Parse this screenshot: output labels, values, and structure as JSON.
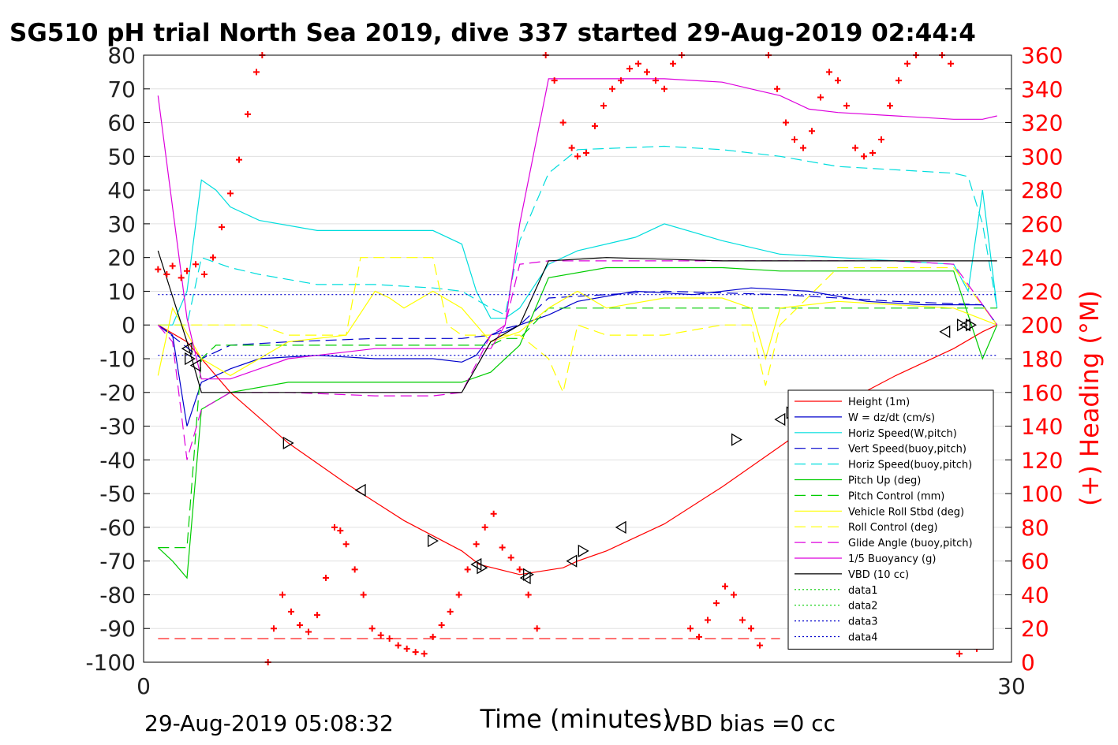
{
  "chart_data": {
    "type": "line",
    "title": "SG510 pH trial North Sea 2019, dive 337 started 29-Aug-2019 02:44:4",
    "xlabel": "Time (minutes)",
    "ylabel_right": "(+) Heading (°M)",
    "footer_left": "29-Aug-2019 05:08:32",
    "footer_right": "VBD bias =0 cc",
    "xlim": [
      0,
      30
    ],
    "ylim": [
      -100,
      80
    ],
    "ylim_right": [
      0,
      360
    ],
    "xticks": [
      "0",
      "30"
    ],
    "yticks": [
      "80",
      "70",
      "60",
      "50",
      "40",
      "30",
      "20",
      "10",
      "0",
      "-10",
      "-20",
      "-30",
      "-40",
      "-50",
      "-60",
      "-70",
      "-80",
      "-90",
      "-100"
    ],
    "yticks_right": [
      "360",
      "340",
      "320",
      "300",
      "280",
      "260",
      "240",
      "220",
      "200",
      "180",
      "160",
      "140",
      "120",
      "100",
      "80",
      "60",
      "40",
      "20",
      "0"
    ],
    "grid": true,
    "legend_position": "bottom-right",
    "series": [
      {
        "name": "Height (1m)",
        "color": "#ff0000",
        "style": "solid",
        "x": [
          0.5,
          1.5,
          3,
          5,
          7,
          9,
          11,
          11.6,
          13,
          14.5,
          15,
          16,
          18,
          20,
          22,
          24,
          26,
          28,
          29,
          29.5
        ],
        "y": [
          0,
          -5,
          -20,
          -35,
          -47,
          -58,
          -67,
          -71,
          -74,
          -72,
          -70,
          -67,
          -59,
          -48,
          -36,
          -24,
          -15,
          -7,
          -2,
          0
        ]
      },
      {
        "name": "W = dz/dt (cm/s)",
        "color": "#0000cc",
        "style": "solid",
        "x": [
          0.5,
          1,
          1.5,
          2,
          3,
          4,
          6,
          8,
          10,
          11,
          11.5,
          12,
          12.5,
          13,
          14,
          15,
          17,
          19,
          21,
          23,
          25,
          27,
          28,
          29,
          29.5
        ],
        "y": [
          0,
          -3,
          -30,
          -17,
          -13,
          -10,
          -9,
          -10,
          -10,
          -11,
          -9,
          -3,
          -2,
          0,
          3,
          7,
          10,
          9,
          11,
          10,
          7,
          6,
          6,
          6,
          0
        ]
      },
      {
        "name": "Horiz Speed(W,pitch)",
        "color": "#00dddd",
        "style": "solid",
        "x": [
          0.5,
          1,
          1.5,
          2,
          2.5,
          3,
          4,
          6,
          8,
          10,
          11,
          11.5,
          12,
          12.5,
          13,
          14,
          15,
          17,
          18,
          20,
          22,
          24,
          26,
          28,
          28.5,
          29,
          29.5
        ],
        "y": [
          0,
          0,
          10,
          43,
          40,
          35,
          31,
          28,
          28,
          28,
          24,
          10,
          2,
          2,
          5,
          18,
          22,
          26,
          30,
          25,
          21,
          20,
          19,
          18,
          10,
          40,
          5
        ]
      },
      {
        "name": "Vert Speed(buoy,pitch)",
        "color": "#0000cc",
        "style": "dashed",
        "x": [
          0.5,
          2,
          3,
          5,
          8,
          11,
          12,
          12.5,
          13,
          14,
          16,
          18,
          22,
          26,
          29,
          29.5
        ],
        "y": [
          0,
          -10,
          -6,
          -5,
          -4,
          -4,
          -3,
          -1,
          0,
          8,
          9,
          10,
          9,
          7,
          6,
          0
        ]
      },
      {
        "name": "Horiz Speed(buoy,pitch)",
        "color": "#00dddd",
        "style": "dashed",
        "x": [
          0.5,
          1.5,
          2,
          3,
          4,
          6,
          8,
          10,
          11,
          12,
          12.5,
          13,
          14,
          15,
          18,
          20,
          22,
          24,
          26,
          28,
          28.5,
          29,
          29.5
        ],
        "y": [
          0,
          0,
          20,
          17,
          15,
          12,
          12,
          11,
          10,
          5,
          3,
          25,
          45,
          52,
          53,
          52,
          50,
          47,
          46,
          45,
          44,
          30,
          5
        ]
      },
      {
        "name": "Pitch Up (deg)",
        "color": "#00cc00",
        "style": "solid",
        "x": [
          0.5,
          1,
          1.5,
          2,
          3,
          5,
          8,
          11,
          12,
          12.5,
          13,
          14,
          16,
          18,
          20,
          22,
          24,
          26,
          28,
          29,
          29.5
        ],
        "y": [
          -66,
          -70,
          -75,
          -25,
          -20,
          -17,
          -17,
          -17,
          -14,
          -10,
          -6,
          14,
          17,
          17,
          17,
          16,
          16,
          16,
          16,
          -10,
          0
        ]
      },
      {
        "name": "Pitch Control (mm)",
        "color": "#00cc00",
        "style": "dashed",
        "x": [
          0.5,
          1,
          1.5,
          2,
          2.5,
          3,
          6,
          9,
          12,
          12.5,
          13,
          14,
          16,
          20,
          24,
          28,
          29.5
        ],
        "y": [
          -66,
          -66,
          -66,
          -10,
          -6,
          -6,
          -6,
          -6,
          -6,
          -4,
          -4,
          5,
          5,
          5,
          5,
          5,
          5
        ]
      },
      {
        "name": "Vehicle Roll Stbd (deg)",
        "color": "#ffff00",
        "style": "solid",
        "x": [
          0.5,
          1,
          2,
          3,
          5,
          7,
          8,
          8.5,
          9,
          10,
          11,
          12,
          13,
          14,
          15,
          16,
          18,
          20,
          21,
          21.5,
          22,
          24,
          26,
          28,
          29.5
        ],
        "y": [
          -15,
          5,
          -10,
          -15,
          -5,
          -3,
          10,
          8,
          5,
          10,
          5,
          -5,
          -2,
          5,
          10,
          5,
          8,
          8,
          5,
          -10,
          5,
          7,
          6,
          5,
          0
        ]
      },
      {
        "name": "Roll Control (deg)",
        "color": "#ffff00",
        "style": "dashed",
        "x": [
          0.5,
          2,
          3,
          4,
          5,
          7,
          7.5,
          10,
          10.5,
          11,
          12,
          13,
          14,
          14.5,
          15,
          16,
          18,
          20,
          21,
          21.5,
          22,
          24,
          26,
          28,
          29.5
        ],
        "y": [
          0,
          0,
          0,
          0,
          -3,
          -3,
          20,
          20,
          0,
          -3,
          -3,
          -3,
          -10,
          -20,
          0,
          -3,
          -3,
          0,
          0,
          -18,
          0,
          17,
          17,
          17,
          0
        ]
      },
      {
        "name": "Glide Angle (buoy,pitch)",
        "color": "#dd00dd",
        "style": "dashed",
        "x": [
          0.5,
          1,
          1.5,
          2,
          3,
          5,
          8,
          10,
          11,
          12,
          12.5,
          13,
          14,
          16,
          18,
          20,
          22,
          24,
          26,
          28,
          29.5
        ],
        "y": [
          0,
          -5,
          -40,
          -25,
          -20,
          -20,
          -21,
          -21,
          -20,
          -3,
          0,
          18,
          19,
          19,
          19,
          19,
          19,
          19,
          19,
          18,
          0
        ]
      },
      {
        "name": "1/5 Buoyancy (g)",
        "color": "#dd00dd",
        "style": "solid",
        "x": [
          0.5,
          1.5,
          2,
          3,
          4,
          5,
          8,
          11,
          12,
          12.5,
          13,
          14,
          15,
          18,
          20,
          21,
          22,
          23,
          24,
          26,
          28,
          29,
          29.5
        ],
        "y": [
          68,
          2,
          -16,
          -16,
          -13,
          -10,
          -7,
          -7,
          -7,
          0,
          30,
          73,
          73,
          73,
          72,
          70,
          68,
          64,
          63,
          62,
          61,
          61,
          62
        ]
      },
      {
        "name": "VBD (10 cc)",
        "color": "#000000",
        "style": "solid",
        "x": [
          0.5,
          1.5,
          2,
          3,
          5,
          8,
          10,
          11,
          12,
          13,
          14,
          16,
          20,
          24,
          28,
          29,
          29.5
        ],
        "y": [
          22,
          -5,
          -20,
          -20,
          -20,
          -20,
          -20,
          -20,
          -5,
          0,
          19,
          20,
          19,
          19,
          19,
          19,
          19
        ]
      },
      {
        "name": "data1",
        "color": "#00cc00",
        "style": "dotted",
        "x": [],
        "y": []
      },
      {
        "name": "data2",
        "color": "#00cc00",
        "style": "dotted",
        "x": [],
        "y": []
      },
      {
        "name": "data3",
        "color": "#0000cc",
        "style": "dotted",
        "x": [
          0.5,
          29.5
        ],
        "y": [
          9,
          9
        ]
      },
      {
        "name": "data4",
        "color": "#0000cc",
        "style": "dotted",
        "x": [
          0.5,
          29.5
        ],
        "y": [
          -9,
          -9
        ]
      }
    ],
    "heading_series": {
      "name": "(+) Heading (°M)",
      "color": "#ff0000",
      "marker": "+",
      "x": [
        0.5,
        0.8,
        1,
        1.3,
        1.5,
        1.8,
        2.1,
        2.4,
        2.7,
        3,
        3.3,
        3.6,
        3.9,
        4.1,
        4.3,
        4.5,
        4.8,
        5.1,
        5.4,
        5.7,
        6,
        6.3,
        6.6,
        6.8,
        7,
        7.3,
        7.6,
        7.9,
        8.2,
        8.5,
        8.8,
        9.1,
        9.4,
        9.7,
        10,
        10.3,
        10.6,
        10.9,
        11.2,
        11.5,
        11.8,
        12.1,
        12.4,
        12.7,
        13,
        13.3,
        13.6,
        13.9,
        14.2,
        14.5,
        14.8,
        15,
        15.3,
        15.6,
        15.9,
        16.2,
        16.5,
        16.8,
        17.1,
        17.4,
        17.7,
        18,
        18.3,
        18.6,
        18.9,
        19.2,
        19.5,
        19.8,
        20.1,
        20.4,
        20.7,
        21,
        21.3,
        21.6,
        21.9,
        22.2,
        22.5,
        22.8,
        23.1,
        23.4,
        23.7,
        24,
        24.3,
        24.6,
        24.9,
        25.2,
        25.5,
        25.8,
        26.1,
        26.4,
        26.7,
        27,
        27.3,
        27.6,
        27.9,
        28.2,
        28.5,
        28.8,
        29.1
      ],
      "y": [
        233,
        230,
        235,
        228,
        232,
        236,
        230,
        240,
        258,
        278,
        298,
        325,
        350,
        360,
        0,
        20,
        40,
        30,
        22,
        18,
        28,
        50,
        80,
        78,
        70,
        55,
        40,
        20,
        16,
        14,
        10,
        8,
        6,
        5,
        15,
        22,
        30,
        40,
        55,
        70,
        80,
        88,
        68,
        62,
        55,
        40,
        20,
        360,
        345,
        320,
        305,
        300,
        302,
        318,
        330,
        340,
        345,
        352,
        355,
        350,
        345,
        340,
        355,
        360,
        20,
        15,
        25,
        35,
        45,
        40,
        25,
        20,
        10,
        360,
        340,
        320,
        310,
        305,
        315,
        335,
        350,
        345,
        330,
        305,
        300,
        302,
        310,
        330,
        345,
        355,
        360,
        10,
        12,
        360,
        355,
        5,
        10,
        8,
        12
      ]
    },
    "triangle_markers": {
      "x": [
        1.5,
        1.6,
        1.8,
        5,
        7.5,
        10,
        11.5,
        11.7,
        13.2,
        13.3,
        14.8,
        15.2,
        16.5,
        20.5,
        22,
        22.4,
        27.7,
        28.3,
        28.4,
        28.6
      ],
      "y": [
        -7,
        -10,
        -12,
        -35,
        -49,
        -64,
        -71,
        -72,
        -75,
        -74,
        -70,
        -67,
        -60,
        -34,
        -28,
        -26,
        -2,
        0,
        0,
        0
      ]
    }
  }
}
